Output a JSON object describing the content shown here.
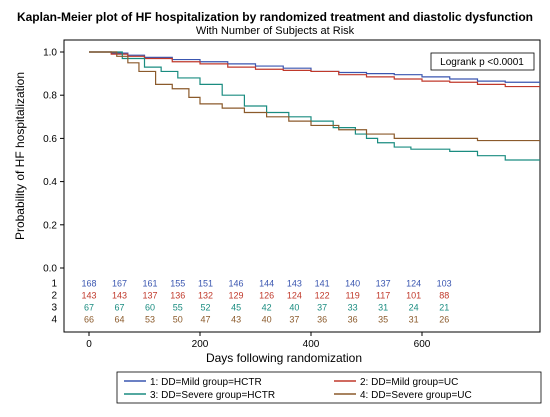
{
  "chart_data": {
    "type": "line",
    "title": "Kaplan-Meier plot of HF hospitalization by randomized treatment and diastolic dysfunction",
    "subtitle": "With Number of Subjects at Risk",
    "xlabel": "Days following randomization",
    "ylabel": "Probability of HF hospitalization",
    "xlim": [
      -40,
      750
    ],
    "ylim": [
      0,
      1.0
    ],
    "x_ticks": [
      0,
      200,
      400,
      600
    ],
    "y_ticks": [
      "0.0",
      "0.2",
      "0.4",
      "0.6",
      "0.8",
      "1.0"
    ],
    "grid": false,
    "annotation": "Logrank p <0.0001",
    "series": [
      {
        "name": "1: DD=Mild group=HCTR",
        "color": "#3a56b0",
        "x": [
          0,
          40,
          70,
          100,
          150,
          200,
          250,
          300,
          350,
          400,
          450,
          500,
          550,
          600,
          650,
          700,
          750
        ],
        "y": [
          1.0,
          0.995,
          0.985,
          0.975,
          0.965,
          0.955,
          0.945,
          0.935,
          0.925,
          0.91,
          0.905,
          0.9,
          0.895,
          0.885,
          0.875,
          0.865,
          0.86
        ]
      },
      {
        "name": "2: DD=Mild group=UC",
        "color": "#c0392b",
        "x": [
          0,
          40,
          70,
          100,
          150,
          200,
          250,
          300,
          350,
          400,
          450,
          500,
          550,
          600,
          650,
          700,
          750
        ],
        "y": [
          1.0,
          0.99,
          0.98,
          0.97,
          0.955,
          0.945,
          0.93,
          0.92,
          0.915,
          0.91,
          0.895,
          0.885,
          0.875,
          0.865,
          0.86,
          0.85,
          0.84
        ]
      },
      {
        "name": "3: DD=Severe group=HCTR",
        "color": "#1a8c80",
        "x": [
          0,
          60,
          100,
          130,
          160,
          200,
          240,
          280,
          320,
          360,
          400,
          440,
          480,
          500,
          520,
          550,
          580,
          600,
          650,
          700,
          750
        ],
        "y": [
          1.0,
          0.97,
          0.93,
          0.91,
          0.88,
          0.85,
          0.8,
          0.75,
          0.72,
          0.7,
          0.68,
          0.65,
          0.62,
          0.6,
          0.58,
          0.56,
          0.55,
          0.55,
          0.54,
          0.52,
          0.5
        ]
      },
      {
        "name": "4: DD=Severe group=UC",
        "color": "#8b5a2b",
        "x": [
          0,
          50,
          70,
          90,
          120,
          150,
          180,
          200,
          240,
          280,
          320,
          360,
          400,
          450,
          500,
          550,
          600,
          650,
          700,
          750
        ],
        "y": [
          1.0,
          0.98,
          0.95,
          0.91,
          0.85,
          0.83,
          0.79,
          0.76,
          0.74,
          0.72,
          0.7,
          0.68,
          0.66,
          0.64,
          0.62,
          0.6,
          0.6,
          0.6,
          0.59,
          0.59
        ]
      }
    ],
    "risk_table": {
      "x": [
        0,
        55,
        110,
        160,
        210,
        265,
        320,
        370,
        420,
        475,
        530,
        585,
        640
      ],
      "rows": [
        {
          "label": "1",
          "color": "#3a56b0",
          "counts": [
            "168",
            "167",
            "161",
            "155",
            "151",
            "146",
            "144",
            "143",
            "141",
            "140",
            "137",
            "124",
            "103"
          ]
        },
        {
          "label": "2",
          "color": "#c0392b",
          "counts": [
            "143",
            "143",
            "137",
            "136",
            "132",
            "129",
            "126",
            "124",
            "122",
            "119",
            "117",
            "101",
            "88"
          ]
        },
        {
          "label": "3",
          "color": "#1a8c80",
          "counts": [
            "67",
            "67",
            "60",
            "55",
            "52",
            "45",
            "42",
            "40",
            "37",
            "33",
            "31",
            "24",
            "21"
          ]
        },
        {
          "label": "4",
          "color": "#8b5a2b",
          "counts": [
            "66",
            "64",
            "53",
            "50",
            "47",
            "43",
            "40",
            "37",
            "36",
            "36",
            "35",
            "31",
            "26"
          ]
        }
      ]
    }
  }
}
